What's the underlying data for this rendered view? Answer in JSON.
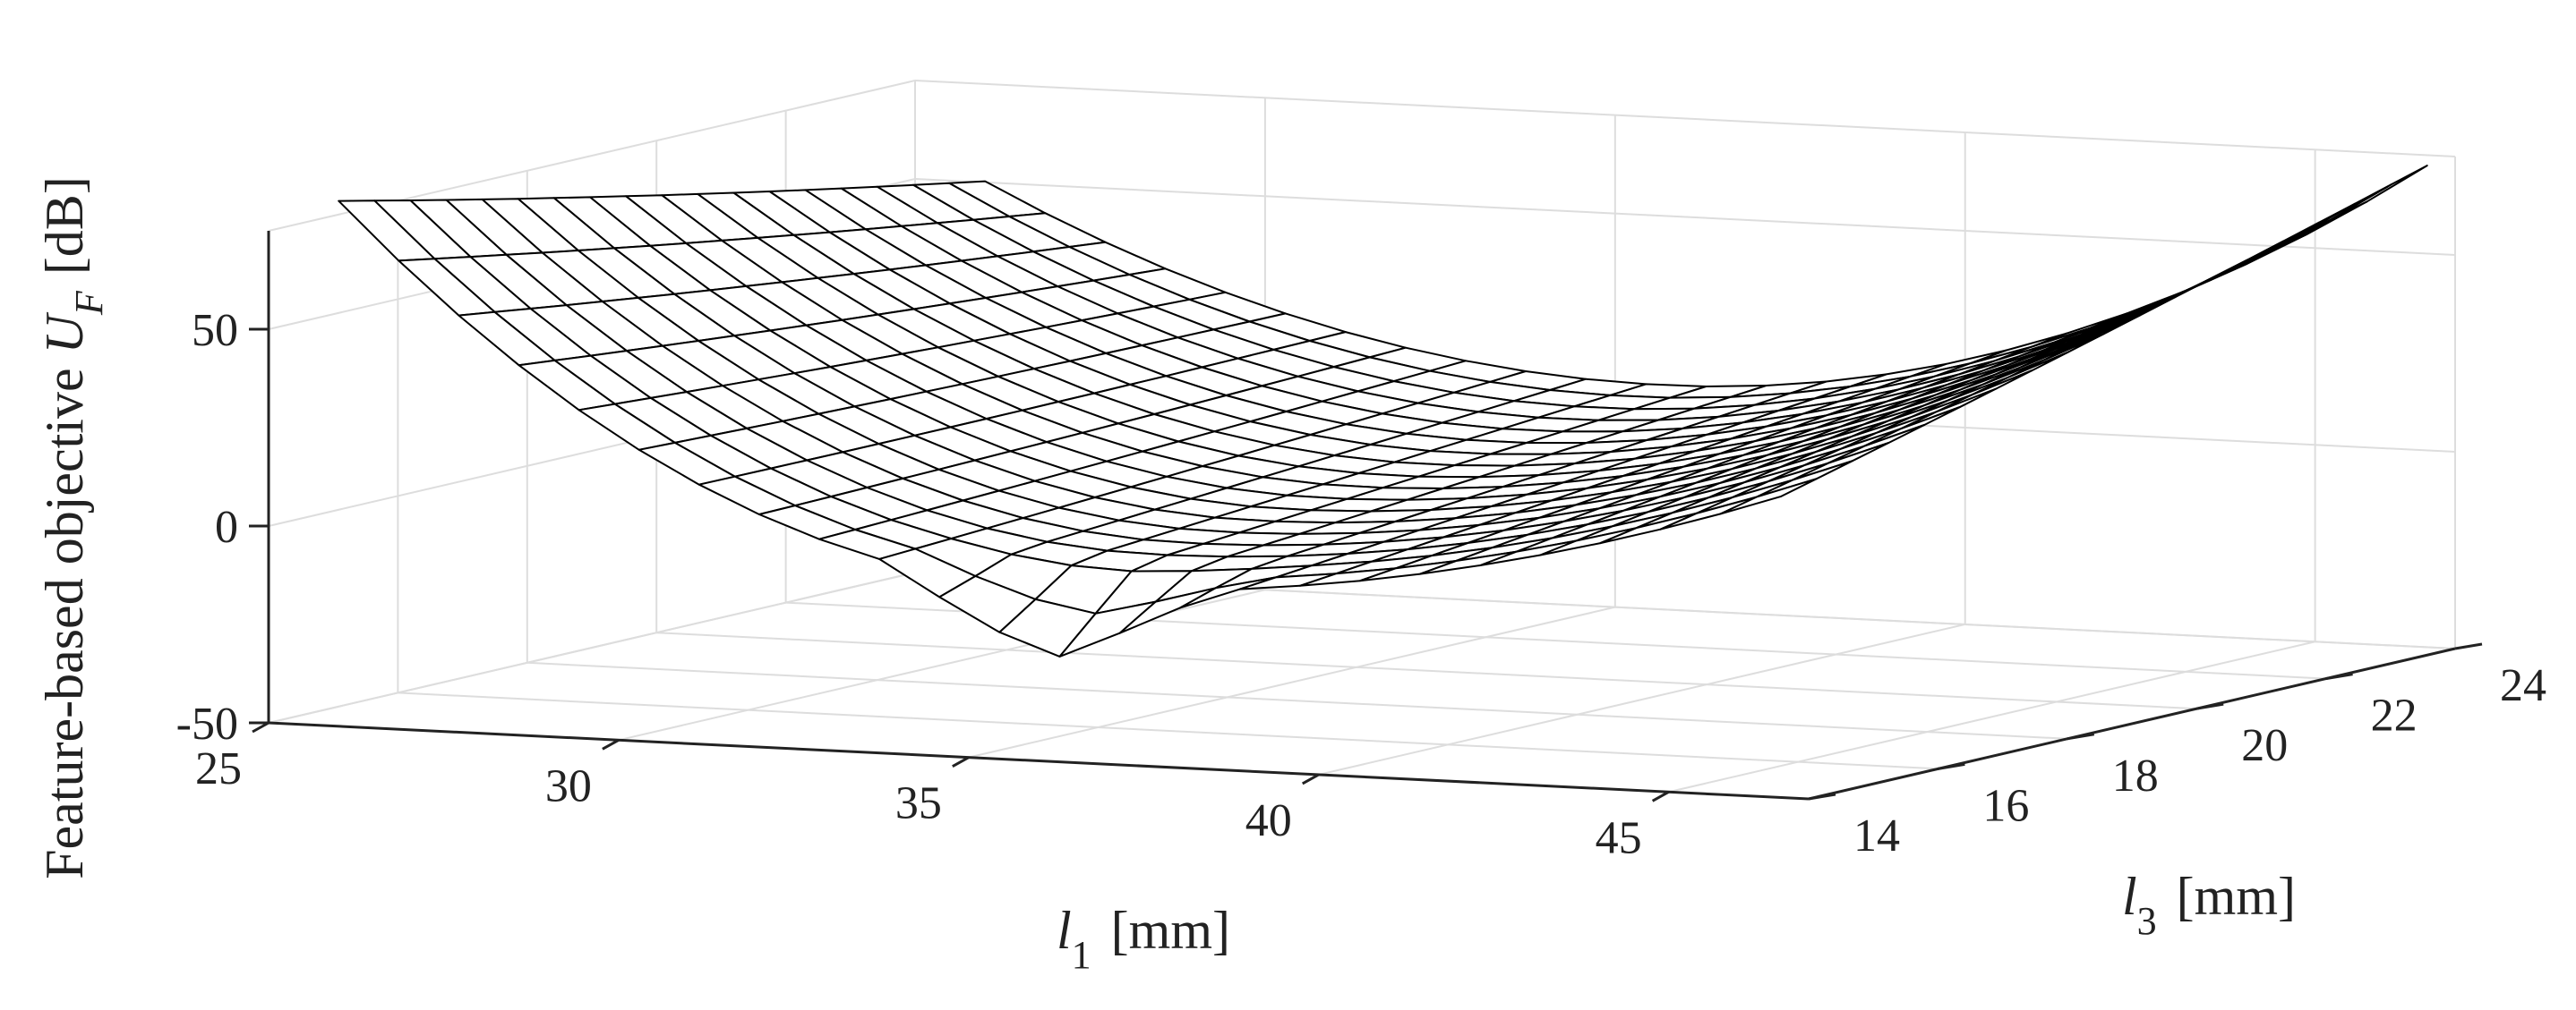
{
  "chart_data": {
    "type": "surface",
    "mesh": "wireframe",
    "x_label": {
      "symbol": "l",
      "subscript": "1",
      "unit": "[mm]"
    },
    "y_label": {
      "symbol": "l",
      "subscript": "3",
      "unit": "[mm]"
    },
    "z_label": {
      "prefix": "Feature-based objective",
      "symbol": "U",
      "subscript": "F",
      "unit": "[dB]"
    },
    "x_range": [
      25,
      47
    ],
    "y_range": [
      14,
      24
    ],
    "z_range": [
      -50,
      75
    ],
    "x_ticks": [
      25,
      30,
      35,
      40,
      45
    ],
    "y_ticks": [
      14,
      16,
      18,
      20,
      22,
      24
    ],
    "z_ticks": [
      -50,
      0,
      50
    ],
    "grid": true,
    "colors": {
      "mesh_face": "#ffffff",
      "mesh_edge": "#000000",
      "grid": "#dddddd",
      "axis": "#222222"
    },
    "surface_samples": [
      {
        "l1": 26,
        "l3": 14,
        "UF": 72
      },
      {
        "l1": 26,
        "l3": 24,
        "UF": 35
      },
      {
        "l1": 36,
        "l3": 14,
        "UF": -20
      },
      {
        "l1": 36,
        "l3": 24,
        "UF": 0
      },
      {
        "l1": 46.6,
        "l3": 14,
        "UF": 32
      },
      {
        "l1": 46.6,
        "l3": 24,
        "UF": 70
      }
    ]
  }
}
